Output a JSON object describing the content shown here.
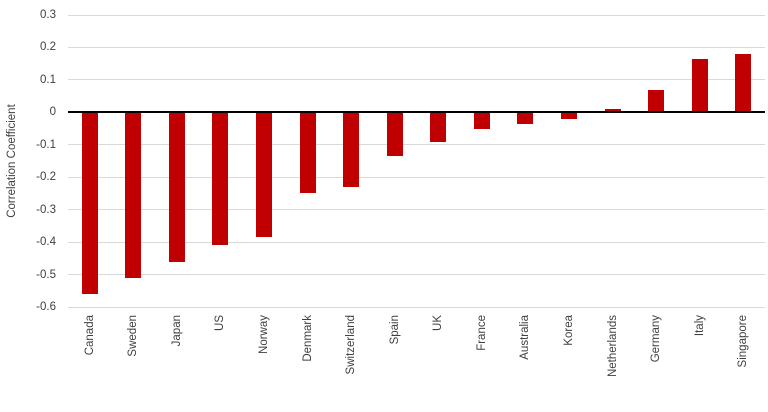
{
  "chart_data": {
    "type": "bar",
    "title": "",
    "xlabel": "",
    "ylabel": "Correlation Coefficient",
    "categories": [
      "Canada",
      "Sweden",
      "Japan",
      "US",
      "Norway",
      "Denmark",
      "Switzerland",
      "Spain",
      "UK",
      "France",
      "Australia",
      "Korea",
      "Netherlands",
      "Germany",
      "Italy",
      "Singapore"
    ],
    "values": [
      -0.56,
      -0.51,
      -0.46,
      -0.41,
      -0.385,
      -0.25,
      -0.23,
      -0.135,
      -0.09,
      -0.05,
      -0.035,
      -0.02,
      0.01,
      0.07,
      0.165,
      0.18
    ],
    "ylim": [
      -0.6,
      0.3
    ],
    "ytick_interval": 0.1,
    "ytick_labels": [
      "0.3",
      "0.2",
      "0.1",
      "0",
      "-0.1",
      "-0.2",
      "-0.3",
      "-0.4",
      "-0.5",
      "-0.6"
    ],
    "grid": true,
    "legend": false,
    "bar_color": "#c00000",
    "grid_color": "#d9d9d9",
    "zero_line_color": "#000000",
    "axis_text_color": "#3f3f3f",
    "background_color": "#ffffff"
  }
}
